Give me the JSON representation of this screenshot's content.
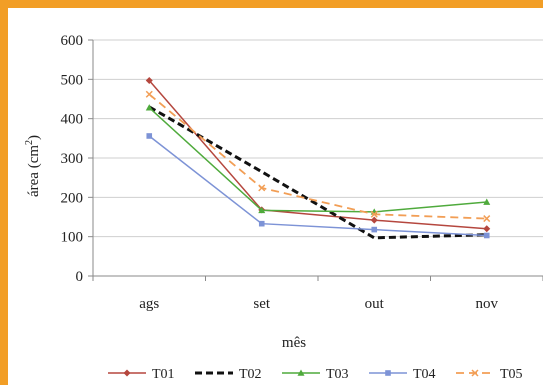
{
  "chart_data": {
    "type": "line",
    "categories": [
      "ags",
      "set",
      "out",
      "nov"
    ],
    "xlabel": "mês",
    "ylabel": "área (cm²)",
    "ylim": [
      0,
      600
    ],
    "yticks": [
      0,
      100,
      200,
      300,
      400,
      500,
      600
    ],
    "grid": true,
    "legend": "bottom",
    "series": [
      {
        "name": "T01",
        "values": [
          497,
          168,
          142,
          120
        ],
        "color": "#b5473e",
        "dash": "solid",
        "marker": "diamond"
      },
      {
        "name": "T02",
        "values": [
          430,
          265,
          97,
          105
        ],
        "color": "#111111",
        "dash": "dashed",
        "marker": "none"
      },
      {
        "name": "T03",
        "values": [
          428,
          167,
          163,
          188
        ],
        "color": "#4faa3c",
        "dash": "solid",
        "marker": "triangle"
      },
      {
        "name": "T04",
        "values": [
          356,
          133,
          118,
          103
        ],
        "color": "#7d93d6",
        "dash": "solid",
        "marker": "square"
      },
      {
        "name": "T05",
        "values": [
          462,
          224,
          157,
          146
        ],
        "color": "#f29e55",
        "dash": "dashed",
        "marker": "x"
      }
    ]
  }
}
